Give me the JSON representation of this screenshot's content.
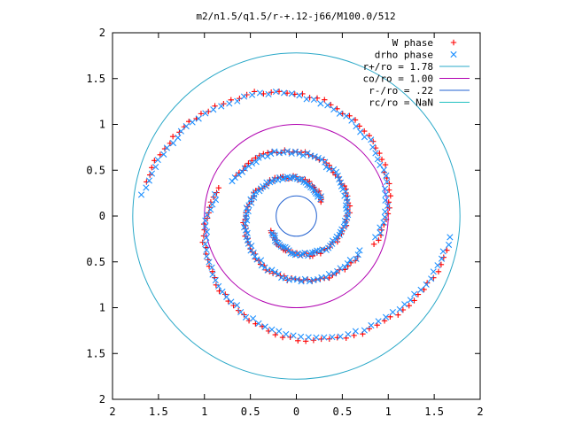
{
  "chart_data": {
    "type": "scatter",
    "title": "m2/n1.5/q1.5/r-+.12-j66/M100.0/512",
    "xlim": [
      -2,
      2
    ],
    "ylim": [
      -2,
      2
    ],
    "x_ticks": [
      {
        "v": -2,
        "label": "2"
      },
      {
        "v": -1.5,
        "label": "1.5"
      },
      {
        "v": -1,
        "label": "1"
      },
      {
        "v": -0.5,
        "label": "0.5"
      },
      {
        "v": 0,
        "label": "0"
      },
      {
        "v": 0.5,
        "label": "0.5"
      },
      {
        "v": 1,
        "label": "1"
      },
      {
        "v": 1.5,
        "label": "1.5"
      },
      {
        "v": 2,
        "label": "2"
      }
    ],
    "y_ticks": [
      {
        "v": 2,
        "label": "2"
      },
      {
        "v": 1.5,
        "label": "1.5"
      },
      {
        "v": 1,
        "label": "1"
      },
      {
        "v": 0.5,
        "label": "0.5"
      },
      {
        "v": 0,
        "label": "0"
      },
      {
        "v": -0.5,
        "label": "0.5"
      },
      {
        "v": -1,
        "label": "1"
      },
      {
        "v": -1.5,
        "label": "1.5"
      },
      {
        "v": -2,
        "label": "2"
      }
    ],
    "grid": false,
    "legend_position": "top-right",
    "legend": [
      {
        "label": "W phase",
        "kind": "point",
        "symbol": "plus",
        "color": "#ff0000"
      },
      {
        "label": "drho phase",
        "kind": "point",
        "symbol": "cross",
        "color": "#1e90ff"
      },
      {
        "label": "r+/ro = 1.78",
        "kind": "line",
        "color": "#2aa8c8"
      },
      {
        "label": "co/ro = 1.00",
        "kind": "line",
        "color": "#b000b0"
      },
      {
        "label": "r-/ro = .22",
        "kind": "line",
        "color": "#2060d0"
      },
      {
        "label": "rc/ro = NaN",
        "kind": "line",
        "color": "#20c0c0"
      }
    ],
    "circles": [
      {
        "name": "r+/ro = 1.78",
        "r": 1.78,
        "color": "#2aa8c8"
      },
      {
        "name": "co/ro = 1.00",
        "r": 1.0,
        "color": "#b000b0"
      },
      {
        "name": "r-/ro = .22",
        "r": 0.22,
        "color": "#2060d0"
      }
    ],
    "series": [
      {
        "name": "W phase",
        "color": "#ff0000",
        "marker": "plus",
        "spiral_arms": [
          {
            "r": [
              0.32,
              0.4,
              0.48,
              0.56,
              0.64,
              0.72,
              0.8
            ],
            "theta_deg": [
              210,
              260,
              310,
              360,
              410,
              460,
              510
            ]
          },
          {
            "r": [
              0.32,
              0.4,
              0.48,
              0.56,
              0.64,
              0.72,
              0.8
            ],
            "theta_deg": [
              30,
              80,
              130,
              180,
              230,
              280,
              330
            ]
          },
          {
            "r": [
              0.9,
              1.1,
              1.3,
              1.5,
              1.7
            ],
            "theta_deg": [
              -20,
              30,
              80,
              130,
              170
            ]
          },
          {
            "r": [
              0.9,
              1.1,
              1.3,
              1.5,
              1.7
            ],
            "theta_deg": [
              160,
              210,
              260,
              310,
              350
            ]
          }
        ]
      },
      {
        "name": "drho phase",
        "color": "#1e90ff",
        "marker": "cross",
        "spiral_arms": [
          {
            "r": [
              0.32,
              0.4,
              0.48,
              0.56,
              0.64,
              0.72,
              0.8
            ],
            "theta_deg": [
              215,
              265,
              315,
              365,
              415,
              465,
              515
            ]
          },
          {
            "r": [
              0.32,
              0.4,
              0.48,
              0.56,
              0.64,
              0.72,
              0.8
            ],
            "theta_deg": [
              35,
              85,
              135,
              185,
              235,
              285,
              335
            ]
          },
          {
            "r": [
              0.9,
              1.1,
              1.3,
              1.5,
              1.7
            ],
            "theta_deg": [
              -15,
              35,
              85,
              135,
              175
            ]
          },
          {
            "r": [
              0.9,
              1.1,
              1.3,
              1.5,
              1.7
            ],
            "theta_deg": [
              165,
              215,
              265,
              315,
              355
            ]
          }
        ]
      }
    ]
  }
}
